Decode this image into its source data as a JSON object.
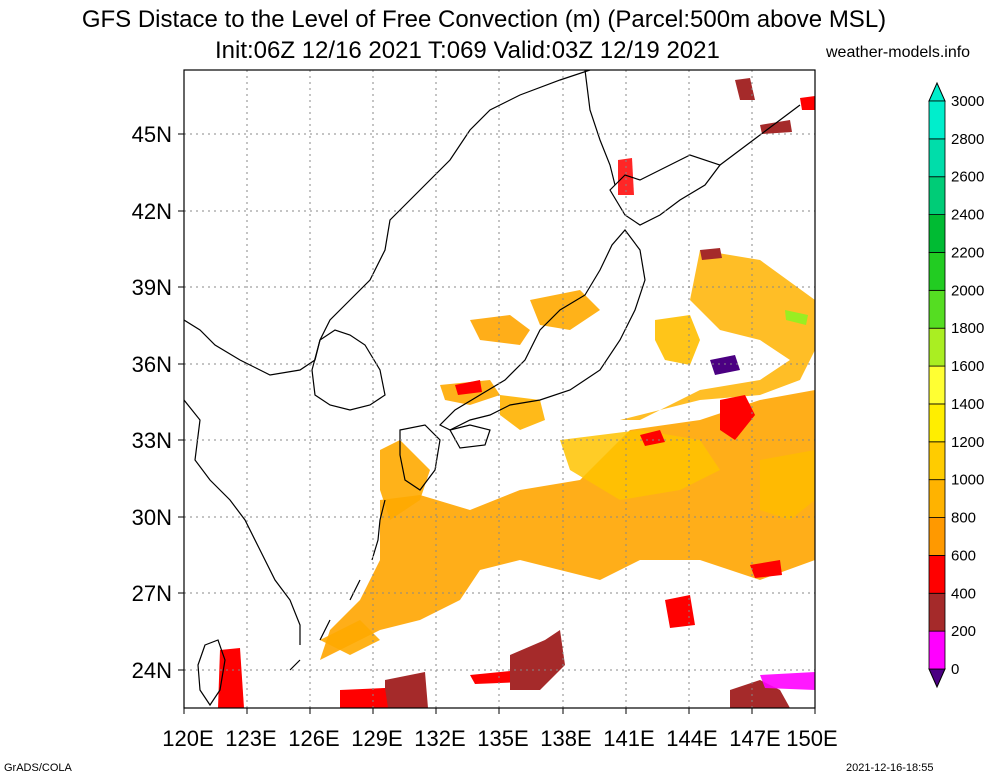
{
  "header": {
    "title_line1": "GFS Distace to the Level of Free Convection (m) (Parcel:500m above MSL)",
    "title_line2": "Init:06Z 12/16 2021 T:069 Valid:03Z 12/19 2021",
    "site": "weather-models.info"
  },
  "footer": {
    "left": "GrADS/COLA",
    "right": "2021-12-16-18:55"
  },
  "map": {
    "lon_ticks": [
      "120E",
      "123E",
      "126E",
      "129E",
      "132E",
      "135E",
      "138E",
      "141E",
      "144E",
      "147E",
      "150E"
    ],
    "lat_ticks": [
      "45N",
      "42N",
      "39N",
      "36N",
      "33N",
      "30N",
      "27N",
      "24N"
    ],
    "lon_range": [
      120,
      150
    ],
    "lat_range": [
      22.5,
      47.5
    ],
    "grid": true
  },
  "colorbar": {
    "levels": [
      "0",
      "200",
      "400",
      "600",
      "800",
      "1000",
      "1200",
      "1400",
      "1600",
      "1800",
      "2000",
      "2200",
      "2400",
      "2600",
      "2800",
      "3000"
    ],
    "colors": [
      "#4b0082",
      "#ff00ff",
      "#a52a2a",
      "#ff0000",
      "#ff9900",
      "#ffb300",
      "#ffcc00",
      "#ffee00",
      "#ffff33",
      "#aaee22",
      "#55dd22",
      "#22cc22",
      "#00bb33",
      "#00cc77",
      "#00ddaa",
      "#00eecc"
    ]
  }
}
